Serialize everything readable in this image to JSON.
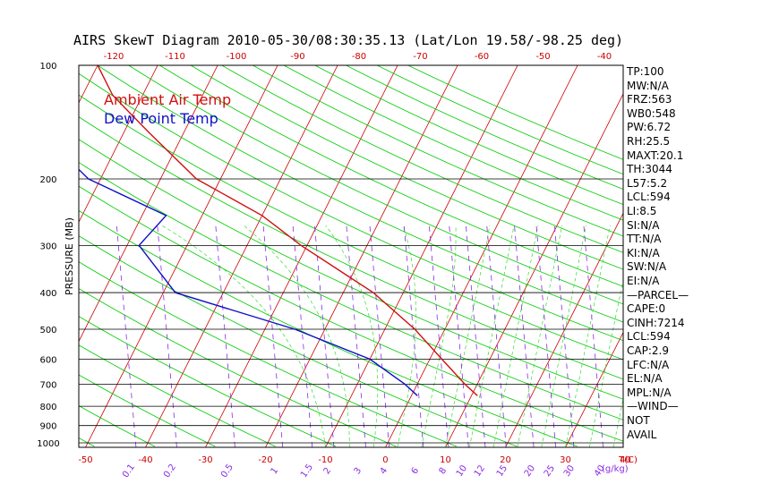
{
  "title": "AIRS SkewT Diagram 2010-05-30/08:30:35.13 (Lat/Lon 19.58/-98.25 deg)",
  "colors": {
    "temp": "#d01010",
    "dew": "#1010c8",
    "dry_adiabat": "#00cc00",
    "moist_adiabat": "#33dd33",
    "isotherm": "#cc0000",
    "mixing_ratio": "#8a2be2",
    "isobar": "#000000"
  },
  "legend": {
    "temp_label": "Ambient Air Temp",
    "dew_label": "Dew Point Temp"
  },
  "chart_data": {
    "type": "line",
    "title": "AIRS SkewT Diagram 2010-05-30/08:30:35.13 (Lat/Lon 19.58/-98.25 deg)",
    "ylabel": "PRESSURE (MB)",
    "xlabel": "T(C)",
    "mixing_ratio_label": "(g/kg)",
    "ylim": [
      1000,
      100
    ],
    "y_scale": "log",
    "pressure_ticks": [
      100,
      200,
      300,
      400,
      500,
      600,
      700,
      800,
      900,
      1000
    ],
    "bottom_temp_ticks": [
      -50,
      -40,
      -30,
      -20,
      -10,
      0,
      10,
      20,
      30,
      40
    ],
    "top_temp_ticks": [
      -120,
      -110,
      -100,
      -90,
      -80,
      -70,
      -60,
      -50,
      -40
    ],
    "mixing_ratio_ticks": [
      "0.1",
      "0.2",
      "0.5",
      "1",
      "1.5",
      "2",
      "3",
      "4",
      "6",
      "8",
      "10",
      "12",
      "15",
      "20",
      "25",
      "30",
      "40"
    ],
    "series": [
      {
        "name": "Ambient Air Temp",
        "points": [
          [
            100,
            -80
          ],
          [
            120,
            -75
          ],
          [
            150,
            -66
          ],
          [
            200,
            -54
          ],
          [
            250,
            -40
          ],
          [
            300,
            -31
          ],
          [
            400,
            -15
          ],
          [
            500,
            -5
          ],
          [
            600,
            2
          ],
          [
            700,
            8
          ],
          [
            750,
            11
          ]
        ]
      },
      {
        "name": "Dew Point Temp",
        "points": [
          [
            100,
            -86
          ],
          [
            150,
            -84
          ],
          [
            200,
            -72
          ],
          [
            250,
            -56
          ],
          [
            300,
            -58
          ],
          [
            400,
            -48
          ],
          [
            500,
            -25
          ],
          [
            600,
            -10
          ],
          [
            700,
            -2
          ],
          [
            750,
            1
          ]
        ]
      }
    ],
    "grid": true
  },
  "indices": [
    "TP:100",
    "MW:N/A",
    "FRZ:563",
    "WB0:548",
    "PW:6.72",
    "RH:25.5",
    "MAXT:20.1",
    "TH:3044",
    "L57:5.2",
    "LCL:594",
    "LI:8.5",
    "SI:N/A",
    "TT:N/A",
    "KI:N/A",
    "SW:N/A",
    "EI:N/A",
    "—PARCEL—",
    "CAPE:0",
    "CINH:7214",
    "LCL:594",
    "CAP:2.9",
    "LFC:N/A",
    "EL:N/A",
    "MPL:N/A",
    "—WIND—",
    "NOT",
    "AVAIL"
  ]
}
